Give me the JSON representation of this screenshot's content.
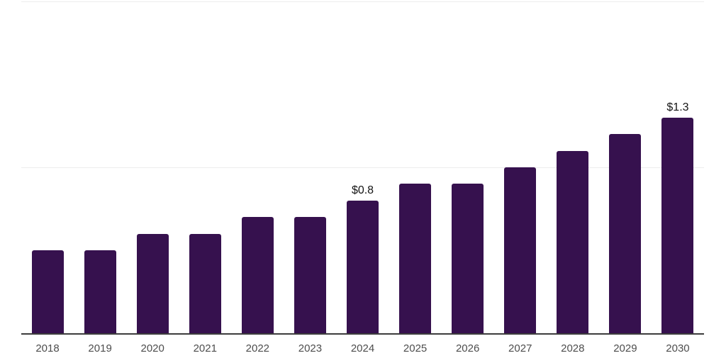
{
  "chart_data": {
    "type": "bar",
    "title": "",
    "xlabel": "",
    "ylabel": "",
    "categories": [
      "2018",
      "2019",
      "2020",
      "2021",
      "2022",
      "2023",
      "2024",
      "2025",
      "2026",
      "2027",
      "2028",
      "2029",
      "2030"
    ],
    "values": [
      0.5,
      0.5,
      0.6,
      0.6,
      0.7,
      0.7,
      0.8,
      0.9,
      0.9,
      1.0,
      1.1,
      1.2,
      1.3
    ],
    "bar_labels": [
      "",
      "",
      "",
      "",
      "",
      "",
      "$0.8",
      "",
      "",
      "",
      "",
      "",
      "$1.3"
    ],
    "ylim": [
      0,
      2
    ],
    "gridline_values": [
      1,
      2
    ],
    "grid": "horizontal",
    "legend": "none",
    "colors": {
      "bar": "#36114e",
      "gridline": "#ededed",
      "axis_line": "#3d3d3d",
      "tick_label": "#4d4d4d",
      "data_label": "#141414",
      "background": "#ffffff"
    }
  }
}
